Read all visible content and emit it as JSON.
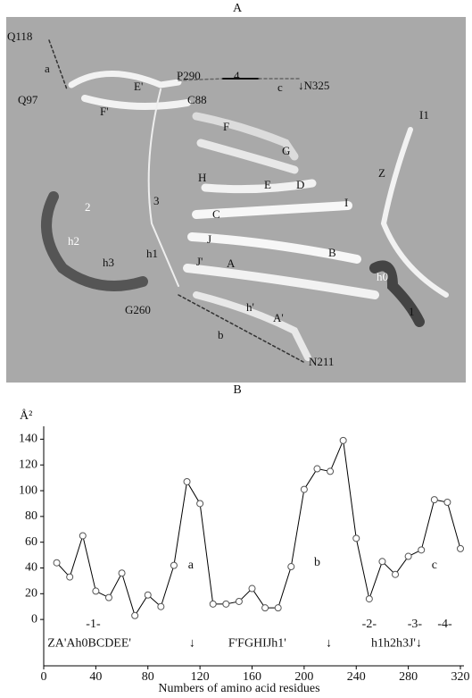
{
  "panel_a": {
    "title": "A",
    "labels": [
      "Q118",
      "a",
      "Q97",
      "E'",
      "P290",
      "4",
      "c",
      "↓N325",
      "C88",
      "F'",
      "F",
      "I1",
      "G",
      "Z",
      "3",
      "2",
      "H",
      "E",
      "D",
      "C",
      "I",
      "h2",
      "J",
      "h3",
      "h1",
      "J'",
      "A",
      "B",
      "h0",
      "G260",
      "h'",
      "A'",
      "1",
      "b",
      "N211"
    ]
  },
  "chart_data": {
    "type": "line",
    "title": "B",
    "ylabel": "Å²",
    "xlabel": "Numbers of amino acid residues",
    "x": [
      10,
      20,
      30,
      40,
      50,
      60,
      70,
      80,
      90,
      100,
      110,
      120,
      130,
      140,
      150,
      160,
      170,
      180,
      190,
      200,
      210,
      220,
      230,
      240,
      250,
      260,
      270,
      280,
      290,
      300,
      310,
      320
    ],
    "series": [
      {
        "name": "Å²",
        "color": "#000000",
        "values": [
          44,
          33,
          65,
          22,
          17,
          36,
          3,
          19,
          10,
          42,
          107,
          90,
          12,
          12,
          14,
          24,
          9,
          9,
          41,
          101,
          117,
          115,
          139,
          63,
          16,
          45,
          35,
          49,
          54,
          93,
          91,
          55
        ]
      }
    ],
    "xlim": [
      0,
      320
    ],
    "xticks": [
      0,
      40,
      80,
      120,
      160,
      200,
      240,
      280,
      320
    ],
    "ylim": [
      -36,
      150
    ],
    "yticks": [
      0,
      20,
      40,
      60,
      80,
      100,
      120,
      140
    ],
    "annotations": [
      {
        "text": "a",
        "x": 113,
        "y": 42
      },
      {
        "text": "b",
        "x": 210,
        "y": 44
      },
      {
        "text": "c",
        "x": 300,
        "y": 42
      },
      {
        "text": "-1-",
        "x": 38,
        "y": -4
      },
      {
        "text": "-2-",
        "x": 250,
        "y": -4
      },
      {
        "text": "-3-",
        "x": 285,
        "y": -4
      },
      {
        "text": "-4-",
        "x": 308,
        "y": -4
      },
      {
        "text": "ZA'Ah0BCDEE'",
        "x": 35,
        "y": -19
      },
      {
        "text": "↓",
        "x": 114,
        "y": -19
      },
      {
        "text": "F'FGHIJh1'",
        "x": 164,
        "y": -19
      },
      {
        "text": "↓",
        "x": 219,
        "y": -19
      },
      {
        "text": "h1h2h3J'↓",
        "x": 271,
        "y": -19
      }
    ]
  }
}
